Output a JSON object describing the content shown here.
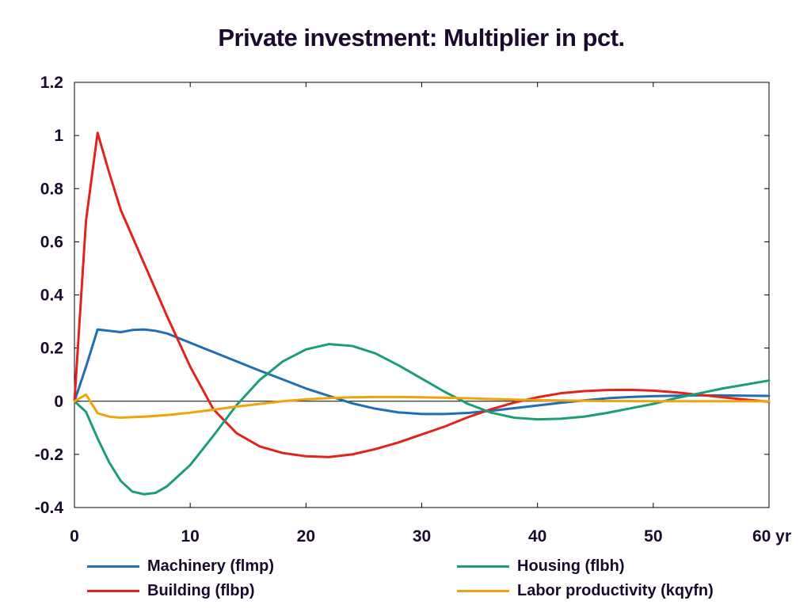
{
  "chart_data": {
    "type": "line",
    "title": "Private investment: Multiplier in pct.",
    "xlabel": "",
    "ylabel": "",
    "x_unit_label": "yr",
    "xlim": [
      0,
      60
    ],
    "ylim": [
      -0.4,
      1.2
    ],
    "x_ticks": [
      0,
      10,
      20,
      30,
      40,
      50,
      60
    ],
    "x_tick_labels": [
      "0",
      "10",
      "20",
      "30",
      "40",
      "50",
      "60 yr"
    ],
    "y_ticks": [
      -0.4,
      -0.2,
      0,
      0.2,
      0.4,
      0.6,
      0.8,
      1,
      1.2
    ],
    "y_tick_labels": [
      "-0.4",
      "-0.2",
      "0",
      "0.2",
      "0.4",
      "0.6",
      "0.8",
      "1",
      "1.2"
    ],
    "grid": false,
    "zero_line": true,
    "legend_position": "bottom",
    "series": [
      {
        "name": "Machinery (flmp)",
        "color": "#1f6fb2",
        "x": [
          0,
          1,
          2,
          3,
          4,
          5,
          6,
          7,
          8,
          10,
          12,
          14,
          16,
          18,
          20,
          22,
          24,
          26,
          28,
          30,
          32,
          34,
          36,
          38,
          40,
          42,
          44,
          46,
          48,
          50,
          52,
          54,
          56,
          58,
          60
        ],
        "y": [
          0,
          0.13,
          0.27,
          0.265,
          0.26,
          0.268,
          0.27,
          0.265,
          0.255,
          0.22,
          0.185,
          0.15,
          0.115,
          0.082,
          0.048,
          0.02,
          -0.008,
          -0.028,
          -0.042,
          -0.048,
          -0.048,
          -0.044,
          -0.036,
          -0.026,
          -0.016,
          -0.006,
          0.003,
          0.011,
          0.016,
          0.019,
          0.021,
          0.022,
          0.022,
          0.021,
          0.02
        ]
      },
      {
        "name": "Building (flbp)",
        "color": "#e2231a",
        "x": [
          0,
          1,
          2,
          3,
          4,
          6,
          8,
          10,
          12,
          14,
          16,
          18,
          20,
          22,
          24,
          26,
          28,
          30,
          32,
          34,
          36,
          38,
          40,
          42,
          44,
          46,
          48,
          50,
          52,
          54,
          56,
          58,
          60
        ],
        "y": [
          0,
          0.68,
          1.01,
          0.86,
          0.72,
          0.52,
          0.32,
          0.13,
          -0.03,
          -0.12,
          -0.17,
          -0.195,
          -0.207,
          -0.21,
          -0.2,
          -0.18,
          -0.155,
          -0.125,
          -0.095,
          -0.06,
          -0.03,
          -0.005,
          0.015,
          0.03,
          0.038,
          0.042,
          0.043,
          0.04,
          0.033,
          0.024,
          0.015,
          0.006,
          -0.002
        ]
      },
      {
        "name": "Housing (flbh)",
        "color": "#1b9e77",
        "x": [
          0,
          1,
          2,
          3,
          4,
          5,
          6,
          7,
          8,
          10,
          12,
          14,
          16,
          18,
          20,
          22,
          24,
          26,
          28,
          30,
          32,
          34,
          36,
          38,
          40,
          42,
          44,
          46,
          48,
          50,
          52,
          54,
          56,
          58,
          60
        ],
        "y": [
          0,
          -0.04,
          -0.14,
          -0.23,
          -0.3,
          -0.34,
          -0.35,
          -0.345,
          -0.32,
          -0.24,
          -0.13,
          -0.015,
          0.08,
          0.15,
          0.195,
          0.215,
          0.208,
          0.18,
          0.135,
          0.085,
          0.035,
          -0.01,
          -0.043,
          -0.062,
          -0.068,
          -0.066,
          -0.058,
          -0.044,
          -0.027,
          -0.01,
          0.012,
          0.03,
          0.048,
          0.063,
          0.078
        ]
      },
      {
        "name": "Labor productivity (kqyfn)",
        "color": "#f0a30a",
        "x": [
          0,
          1,
          2,
          3,
          4,
          6,
          8,
          10,
          12,
          14,
          16,
          18,
          20,
          22,
          24,
          26,
          28,
          30,
          32,
          34,
          36,
          38,
          40,
          45,
          50,
          55,
          60
        ],
        "y": [
          0,
          0.025,
          -0.045,
          -0.058,
          -0.062,
          -0.058,
          -0.052,
          -0.043,
          -0.032,
          -0.02,
          -0.01,
          0.0,
          0.007,
          0.012,
          0.015,
          0.016,
          0.016,
          0.015,
          0.013,
          0.011,
          0.008,
          0.006,
          0.004,
          0.001,
          0.0,
          0.0,
          0.0
        ]
      }
    ]
  }
}
